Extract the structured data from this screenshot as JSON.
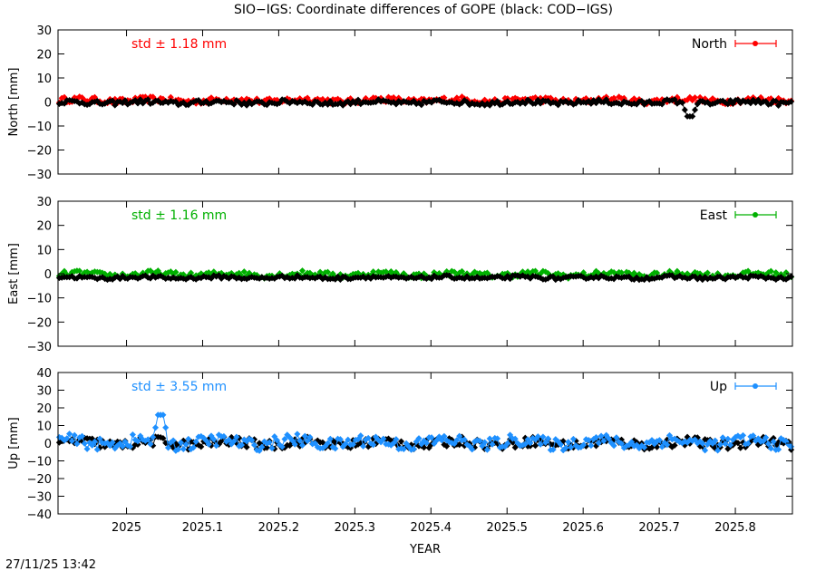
{
  "title": "SIO−IGS: Coordinate differences of GOPE (black: COD−IGS)",
  "timestamp": "27/11/25 13:42",
  "chart_data": [
    {
      "type": "line",
      "ylabel": "North [mm]",
      "ylim": [
        -30,
        30
      ],
      "yticks": [
        30,
        20,
        10,
        0,
        -10,
        -20,
        -30
      ],
      "ytick_labels": [
        "30",
        "20",
        "10",
        "0",
        "−10",
        "−20",
        "−30"
      ],
      "std_text": "std ± 1.18 mm",
      "legend": "North",
      "color": "#ff0000",
      "legend_position": "top-right",
      "series": [
        {
          "color": "#ff0000",
          "center": 0.7,
          "amp": 1.2
        },
        {
          "color": "#000000",
          "center": -0.2,
          "amp": 1.0,
          "spike": {
            "x": 2025.74,
            "y": -6
          }
        }
      ]
    },
    {
      "type": "line",
      "ylabel": "East [mm]",
      "ylim": [
        -30,
        30
      ],
      "yticks": [
        30,
        20,
        10,
        0,
        -10,
        -20,
        -30
      ],
      "ytick_labels": [
        "30",
        "20",
        "10",
        "0",
        "−10",
        "−20",
        "−30"
      ],
      "std_text": "std ± 1.16 mm",
      "legend": "East",
      "color": "#00b000",
      "legend_position": "top-right",
      "series": [
        {
          "color": "#00b000",
          "center": -0.3,
          "amp": 1.2
        },
        {
          "color": "#000000",
          "center": -1.6,
          "amp": 0.7
        }
      ]
    },
    {
      "type": "line",
      "ylabel": "Up [mm]",
      "ylim": [
        -40,
        40
      ],
      "yticks": [
        40,
        30,
        20,
        10,
        0,
        -10,
        -20,
        -30,
        -40
      ],
      "ytick_labels": [
        "40",
        "30",
        "20",
        "10",
        "0",
        "−10",
        "−20",
        "−30",
        "−40"
      ],
      "std_text": "std ± 3.55 mm",
      "legend": "Up",
      "color": "#1e90ff",
      "legend_position": "top-right",
      "series": [
        {
          "color": "#000000",
          "center": 0.0,
          "amp": 2.8
        },
        {
          "color": "#1e90ff",
          "center": 0.5,
          "amp": 3.5,
          "spike": {
            "x": 2025.045,
            "y": 16
          }
        }
      ]
    }
  ],
  "xaxis": {
    "label": "YEAR",
    "xlim": [
      2024.91,
      2025.875
    ],
    "ticks": [
      2025,
      2025.1,
      2025.2,
      2025.3,
      2025.4,
      2025.5,
      2025.6,
      2025.7,
      2025.8
    ],
    "tick_labels": [
      "2025",
      "2025.1",
      "2025.2",
      "2025.3",
      "2025.4",
      "2025.5",
      "2025.6",
      "2025.7",
      "2025.8"
    ]
  }
}
